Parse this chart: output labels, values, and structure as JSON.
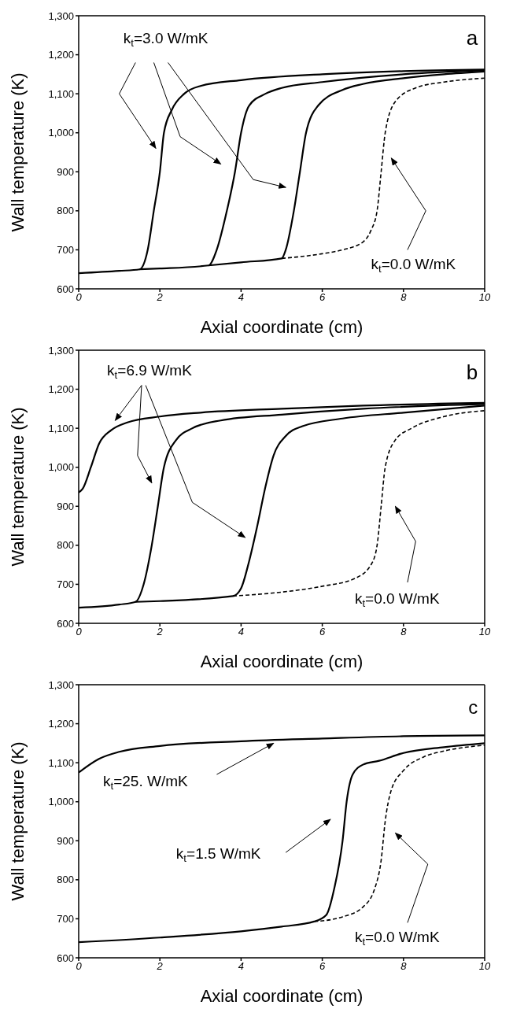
{
  "chart_data": [
    {
      "type": "line",
      "xlabel": "Axial coordinate (cm)",
      "ylabel": "Wall temperature (K)",
      "xlim": [
        0,
        10
      ],
      "ylim": [
        600,
        1300
      ],
      "xticks": [
        0,
        2,
        4,
        6,
        8,
        10
      ],
      "yticks": [
        600,
        700,
        800,
        900,
        {
          "value": 1000,
          "label": "1,000"
        },
        {
          "value": 1100,
          "label": "1,100"
        },
        {
          "value": 1200,
          "label": "1,200"
        },
        {
          "value": 1300,
          "label": "1,300"
        }
      ],
      "grid": false,
      "marker": "none",
      "annotations": [
        "a",
        "k$_{t}$=3.0 W/mK",
        "k$_{t}$=0.0 W/mK"
      ],
      "series": [
        {
          "color": "#000000",
          "line_style": "solid",
          "x": [
            0,
            1,
            1.5,
            1.7,
            1.85,
            2,
            2.1,
            2.3,
            2.6,
            3,
            4,
            6,
            8,
            10
          ],
          "values": [
            640,
            646,
            650,
            700,
            800,
            900,
            1000,
            1060,
            1100,
            1120,
            1135,
            1150,
            1158,
            1162
          ]
        },
        {
          "color": "#000000",
          "line_style": "solid",
          "x": [
            1.5,
            2,
            3.2,
            3.4,
            3.65,
            3.85,
            4,
            4.2,
            4.6,
            5,
            6,
            8,
            10
          ],
          "values": [
            650,
            652,
            660,
            700,
            800,
            900,
            1000,
            1070,
            1100,
            1115,
            1130,
            1150,
            1160
          ]
        },
        {
          "color": "#000000",
          "line_style": "solid",
          "x": [
            3.2,
            4,
            5,
            5.1,
            5.3,
            5.45,
            5.6,
            5.9,
            6.5,
            7,
            8,
            9,
            10
          ],
          "values": [
            660,
            668,
            678,
            700,
            800,
            900,
            1000,
            1070,
            1110,
            1125,
            1140,
            1150,
            1157
          ]
        },
        {
          "color": "#000000",
          "line_style": "dashed",
          "x": [
            5,
            6,
            6.5,
            7,
            7.2,
            7.35,
            7.45,
            7.55,
            7.8,
            8.3,
            9,
            10
          ],
          "values": [
            678,
            690,
            700,
            720,
            750,
            800,
            900,
            1000,
            1080,
            1115,
            1130,
            1140
          ]
        }
      ]
    },
    {
      "type": "line",
      "xlabel": "Axial coordinate (cm)",
      "ylabel": "Wall temperature (K)",
      "xlim": [
        0,
        10
      ],
      "ylim": [
        600,
        1300
      ],
      "xticks": [
        0,
        2,
        4,
        6,
        8,
        10
      ],
      "yticks": [
        600,
        700,
        800,
        900,
        {
          "value": 1000,
          "label": "1,000"
        },
        {
          "value": 1100,
          "label": "1,100"
        },
        {
          "value": 1200,
          "label": "1,200"
        },
        {
          "value": 1300,
          "label": "1,300"
        }
      ],
      "grid": false,
      "marker": "none",
      "annotations": [
        "b",
        "k$_{t}$=6.9 W/mK",
        "k$_{t}$=0.0 W/mK"
      ],
      "series": [
        {
          "color": "#000000",
          "line_style": "solid",
          "x": [
            0,
            0.1,
            0.3,
            0.5,
            0.8,
            1.2,
            2,
            3,
            5,
            7,
            10
          ],
          "values": [
            935,
            945,
            1000,
            1060,
            1095,
            1115,
            1130,
            1140,
            1150,
            1158,
            1165
          ]
        },
        {
          "color": "#000000",
          "line_style": "solid",
          "x": [
            0,
            1,
            1.4,
            1.6,
            1.8,
            1.95,
            2.1,
            2.4,
            2.8,
            3.5,
            5,
            7,
            10
          ],
          "values": [
            640,
            648,
            655,
            700,
            800,
            900,
            1000,
            1070,
            1100,
            1120,
            1135,
            1150,
            1162
          ]
        },
        {
          "color": "#000000",
          "line_style": "solid",
          "x": [
            1.4,
            2,
            3.8,
            4,
            4.2,
            4.4,
            4.6,
            4.8,
            5.1,
            5.5,
            6.5,
            8,
            10
          ],
          "values": [
            655,
            657,
            670,
            690,
            760,
            850,
            950,
            1030,
            1080,
            1105,
            1125,
            1140,
            1158
          ]
        },
        {
          "color": "#000000",
          "line_style": "dashed",
          "x": [
            3.8,
            5,
            6,
            6.8,
            7.2,
            7.35,
            7.45,
            7.55,
            7.8,
            8.2,
            9,
            10
          ],
          "values": [
            670,
            680,
            695,
            715,
            750,
            800,
            900,
            1000,
            1070,
            1100,
            1130,
            1145
          ]
        }
      ]
    },
    {
      "type": "line",
      "xlabel": "Axial coordinate (cm)",
      "ylabel": "Wall temperature (K)",
      "xlim": [
        0,
        10
      ],
      "ylim": [
        600,
        1300
      ],
      "xticks": [
        0,
        2,
        4,
        6,
        8,
        10
      ],
      "yticks": [
        600,
        700,
        800,
        900,
        {
          "value": 1000,
          "label": "1,000"
        },
        {
          "value": 1100,
          "label": "1,100"
        },
        {
          "value": 1200,
          "label": "1,200"
        },
        {
          "value": 1300,
          "label": "1,300"
        }
      ],
      "grid": false,
      "marker": "none",
      "annotations": [
        "c",
        "k$_{t}$=25. W/mK",
        "k$_{t}$=1.5 W/mK",
        "k$_{t}$=0.0 W/mK"
      ],
      "series": [
        {
          "color": "#000000",
          "line_style": "solid",
          "x": [
            0,
            0.5,
            1,
            2,
            4,
            6,
            8,
            10
          ],
          "values": [
            1075,
            1110,
            1128,
            1143,
            1155,
            1162,
            1168,
            1170
          ]
        },
        {
          "color": "#000000",
          "line_style": "solid",
          "x": [
            0,
            2,
            4,
            5,
            5.8,
            6.1,
            6.3,
            6.5,
            6.6,
            6.75,
            7,
            7.4,
            8,
            9,
            10
          ],
          "values": [
            640,
            652,
            668,
            680,
            693,
            710,
            780,
            900,
            1000,
            1070,
            1095,
            1105,
            1125,
            1140,
            1150
          ]
        },
        {
          "color": "#000000",
          "line_style": "dashed",
          "x": [
            5.8,
            6.5,
            7,
            7.3,
            7.45,
            7.55,
            7.7,
            8,
            8.5,
            9,
            10
          ],
          "values": [
            693,
            705,
            730,
            780,
            850,
            950,
            1030,
            1080,
            1115,
            1130,
            1145
          ]
        }
      ]
    }
  ]
}
